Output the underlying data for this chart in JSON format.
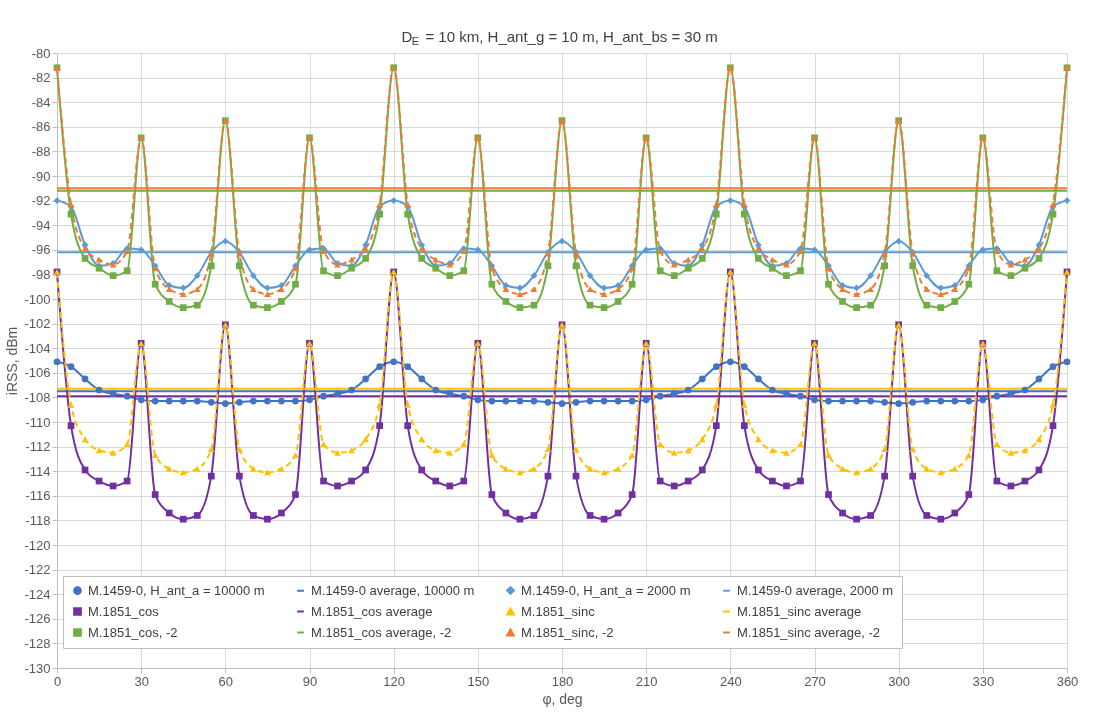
{
  "chart_data": {
    "type": "line",
    "title": "D$_{E}$ = 10 km, H_ant_g = 10 m, H_ant_bs = 30 m",
    "xlabel": "φ, deg",
    "ylabel": "iRSS, dBm",
    "x": [
      0,
      5,
      10,
      15,
      20,
      25,
      30,
      35,
      40,
      45,
      50,
      55,
      60,
      65,
      70,
      75,
      80,
      85,
      90,
      95,
      100,
      105,
      110,
      115,
      120,
      125,
      130,
      135,
      140,
      145,
      150,
      155,
      160,
      165,
      170,
      175,
      180,
      185,
      190,
      195,
      200,
      205,
      210,
      215,
      220,
      225,
      230,
      235,
      240,
      245,
      250,
      255,
      260,
      265,
      270,
      275,
      280,
      285,
      290,
      295,
      300,
      305,
      310,
      315,
      320,
      325,
      330,
      335,
      340,
      345,
      350,
      355,
      360
    ],
    "xlim": [
      0,
      360
    ],
    "xticks": [
      0,
      30,
      60,
      90,
      120,
      150,
      180,
      210,
      240,
      270,
      300,
      330,
      360
    ],
    "ylim": [
      -130,
      -80
    ],
    "yticks": [
      -130,
      -128,
      -126,
      -124,
      -122,
      -120,
      -118,
      -116,
      -114,
      -112,
      -110,
      -108,
      -106,
      -104,
      -102,
      -100,
      -98,
      -96,
      -94,
      -92,
      -90,
      -88,
      -86,
      -84,
      -82,
      -80
    ],
    "grid": true,
    "legend": "bottom",
    "series": [
      {
        "name": "M.1459-0, H_ant_a = 10000 m",
        "color": "#4472c4",
        "type": "line",
        "marker": "circle",
        "line_style": "solid",
        "values": [
          -105.1,
          -105.5,
          -106.5,
          -107.4,
          -107.7,
          -107.9,
          -108.2,
          -108.3,
          -108.3,
          -108.3,
          -108.3,
          -108.4,
          -108.5,
          -108.4,
          -108.3,
          -108.3,
          -108.3,
          -108.3,
          -108.2,
          -107.9,
          -107.7,
          -107.4,
          -106.5,
          -105.5,
          -105.1,
          -105.5,
          -106.5,
          -107.4,
          -107.7,
          -107.9,
          -108.2,
          -108.3,
          -108.3,
          -108.3,
          -108.3,
          -108.4,
          -108.5,
          -108.4,
          -108.3,
          -108.3,
          -108.3,
          -108.3,
          -108.2,
          -107.9,
          -107.7,
          -107.4,
          -106.5,
          -105.5,
          -105.1,
          -105.5,
          -106.5,
          -107.4,
          -107.7,
          -107.9,
          -108.2,
          -108.3,
          -108.3,
          -108.3,
          -108.3,
          -108.4,
          -108.5,
          -108.4,
          -108.3,
          -108.3,
          -108.3,
          -108.3,
          -108.2,
          -107.9,
          -107.7,
          -107.4,
          -106.5,
          -105.5,
          -105.1
        ]
      },
      {
        "name": "M.1459-0 average, 10000 m",
        "color": "#4472c4",
        "type": "line",
        "marker": "none",
        "line_style": "solid",
        "values": [
          -107.5,
          -107.5,
          -107.5,
          -107.5,
          -107.5,
          -107.5,
          -107.5,
          -107.5,
          -107.5,
          -107.5,
          -107.5,
          -107.5,
          -107.5,
          -107.5,
          -107.5,
          -107.5,
          -107.5,
          -107.5,
          -107.5,
          -107.5,
          -107.5,
          -107.5,
          -107.5,
          -107.5,
          -107.5,
          -107.5,
          -107.5,
          -107.5,
          -107.5,
          -107.5,
          -107.5,
          -107.5,
          -107.5,
          -107.5,
          -107.5,
          -107.5,
          -107.5,
          -107.5,
          -107.5,
          -107.5,
          -107.5,
          -107.5,
          -107.5,
          -107.5,
          -107.5,
          -107.5,
          -107.5,
          -107.5,
          -107.5,
          -107.5,
          -107.5,
          -107.5,
          -107.5,
          -107.5,
          -107.5,
          -107.5,
          -107.5,
          -107.5,
          -107.5,
          -107.5,
          -107.5,
          -107.5,
          -107.5,
          -107.5,
          -107.5,
          -107.5,
          -107.5,
          -107.5,
          -107.5,
          -107.5,
          -107.5,
          -107.5,
          -107.5
        ]
      },
      {
        "name": "M.1459-0, H_ant_a = 2000 m",
        "color": "#5b9bd5",
        "type": "line",
        "marker": "diamond",
        "line_style": "solid",
        "values": [
          -92.0,
          -92.5,
          -95.6,
          -97.3,
          -97.1,
          -95.9,
          -96.0,
          -97.3,
          -98.9,
          -99.1,
          -98.1,
          -96.2,
          -95.3,
          -96.2,
          -98.1,
          -99.1,
          -98.9,
          -97.3,
          -96.0,
          -95.9,
          -97.1,
          -97.3,
          -95.6,
          -92.5,
          -92.0,
          -92.5,
          -95.6,
          -97.3,
          -97.1,
          -95.9,
          -96.0,
          -97.3,
          -98.9,
          -99.1,
          -98.1,
          -96.2,
          -95.3,
          -96.2,
          -98.1,
          -99.1,
          -98.9,
          -97.3,
          -96.0,
          -95.9,
          -97.1,
          -97.3,
          -95.6,
          -92.5,
          -92.0,
          -92.5,
          -95.6,
          -97.3,
          -97.1,
          -95.9,
          -96.0,
          -97.3,
          -98.9,
          -99.1,
          -98.1,
          -96.2,
          -95.3,
          -96.2,
          -98.1,
          -99.1,
          -98.9,
          -97.3,
          -96.0,
          -95.9,
          -97.1,
          -97.3,
          -95.6,
          -92.5,
          -92.0
        ]
      },
      {
        "name": "M.1459-0 average, 2000 m",
        "color": "#5b9bd5",
        "type": "line",
        "marker": "none",
        "line_style": "solid",
        "values": [
          -96.2,
          -96.2,
          -96.2,
          -96.2,
          -96.2,
          -96.2,
          -96.2,
          -96.2,
          -96.2,
          -96.2,
          -96.2,
          -96.2,
          -96.2,
          -96.2,
          -96.2,
          -96.2,
          -96.2,
          -96.2,
          -96.2,
          -96.2,
          -96.2,
          -96.2,
          -96.2,
          -96.2,
          -96.2,
          -96.2,
          -96.2,
          -96.2,
          -96.2,
          -96.2,
          -96.2,
          -96.2,
          -96.2,
          -96.2,
          -96.2,
          -96.2,
          -96.2,
          -96.2,
          -96.2,
          -96.2,
          -96.2,
          -96.2,
          -96.2,
          -96.2,
          -96.2,
          -96.2,
          -96.2,
          -96.2,
          -96.2,
          -96.2,
          -96.2,
          -96.2,
          -96.2,
          -96.2,
          -96.2,
          -96.2,
          -96.2,
          -96.2,
          -96.2,
          -96.2,
          -96.2,
          -96.2,
          -96.2,
          -96.2,
          -96.2,
          -96.2,
          -96.2,
          -96.2,
          -96.2,
          -96.2,
          -96.2,
          -96.2,
          -96.2
        ]
      },
      {
        "name": "M.1851_cos",
        "color": "#7030a0",
        "type": "line",
        "marker": "square",
        "line_style": "solid",
        "values": [
          -97.8,
          -110.3,
          -113.9,
          -114.8,
          -115.2,
          -114.8,
          -103.6,
          -115.9,
          -117.4,
          -117.9,
          -117.6,
          -114.4,
          -102.1,
          -114.4,
          -117.6,
          -117.9,
          -117.4,
          -115.9,
          -103.6,
          -114.8,
          -115.2,
          -114.8,
          -113.9,
          -110.3,
          -97.8,
          -110.3,
          -113.9,
          -114.8,
          -115.2,
          -114.8,
          -103.6,
          -115.9,
          -117.4,
          -117.9,
          -117.6,
          -114.4,
          -102.1,
          -114.4,
          -117.6,
          -117.9,
          -117.4,
          -115.9,
          -103.6,
          -114.8,
          -115.2,
          -114.8,
          -113.9,
          -110.3,
          -97.8,
          -110.3,
          -113.9,
          -114.8,
          -115.2,
          -114.8,
          -103.6,
          -115.9,
          -117.4,
          -117.9,
          -117.6,
          -114.4,
          -102.1,
          -114.4,
          -117.6,
          -117.9,
          -117.4,
          -115.9,
          -103.6,
          -114.8,
          -115.2,
          -114.8,
          -113.9,
          -110.3,
          -97.8
        ]
      },
      {
        "name": "M.1851_cos average",
        "color": "#7030a0",
        "type": "line",
        "marker": "none",
        "line_style": "solid",
        "values": [
          -107.9,
          -107.9,
          -107.9,
          -107.9,
          -107.9,
          -107.9,
          -107.9,
          -107.9,
          -107.9,
          -107.9,
          -107.9,
          -107.9,
          -107.9,
          -107.9,
          -107.9,
          -107.9,
          -107.9,
          -107.9,
          -107.9,
          -107.9,
          -107.9,
          -107.9,
          -107.9,
          -107.9,
          -107.9,
          -107.9,
          -107.9,
          -107.9,
          -107.9,
          -107.9,
          -107.9,
          -107.9,
          -107.9,
          -107.9,
          -107.9,
          -107.9,
          -107.9,
          -107.9,
          -107.9,
          -107.9,
          -107.9,
          -107.9,
          -107.9,
          -107.9,
          -107.9,
          -107.9,
          -107.9,
          -107.9,
          -107.9,
          -107.9,
          -107.9,
          -107.9,
          -107.9,
          -107.9,
          -107.9,
          -107.9,
          -107.9,
          -107.9,
          -107.9,
          -107.9,
          -107.9,
          -107.9,
          -107.9,
          -107.9,
          -107.9,
          -107.9,
          -107.9,
          -107.9,
          -107.9,
          -107.9,
          -107.9,
          -107.9,
          -107.9
        ]
      },
      {
        "name": "M.1851_sinc",
        "color": "#ffc000",
        "type": "line",
        "marker": "triangle",
        "line_style": "dashed",
        "values": [
          -97.8,
          -108.6,
          -111.4,
          -112.3,
          -112.5,
          -111.8,
          -103.6,
          -112.7,
          -113.8,
          -114.1,
          -113.8,
          -112.2,
          -102.1,
          -112.2,
          -113.8,
          -114.1,
          -113.8,
          -112.7,
          -103.6,
          -111.8,
          -112.5,
          -112.3,
          -111.4,
          -108.6,
          -97.8,
          -108.6,
          -111.4,
          -112.3,
          -112.5,
          -111.8,
          -103.6,
          -112.7,
          -113.8,
          -114.1,
          -113.8,
          -112.2,
          -102.1,
          -112.2,
          -113.8,
          -114.1,
          -113.8,
          -112.7,
          -103.6,
          -111.8,
          -112.5,
          -112.3,
          -111.4,
          -108.6,
          -97.8,
          -108.6,
          -111.4,
          -112.3,
          -112.5,
          -111.8,
          -103.6,
          -112.7,
          -113.8,
          -114.1,
          -113.8,
          -112.2,
          -102.1,
          -112.2,
          -113.8,
          -114.1,
          -113.8,
          -112.7,
          -103.6,
          -111.8,
          -112.5,
          -112.3,
          -111.4,
          -108.6,
          -97.8
        ]
      },
      {
        "name": "M.1851_sinc average",
        "color": "#ffc000",
        "type": "line",
        "marker": "none",
        "line_style": "solid",
        "values": [
          -107.3,
          -107.3,
          -107.3,
          -107.3,
          -107.3,
          -107.3,
          -107.3,
          -107.3,
          -107.3,
          -107.3,
          -107.3,
          -107.3,
          -107.3,
          -107.3,
          -107.3,
          -107.3,
          -107.3,
          -107.3,
          -107.3,
          -107.3,
          -107.3,
          -107.3,
          -107.3,
          -107.3,
          -107.3,
          -107.3,
          -107.3,
          -107.3,
          -107.3,
          -107.3,
          -107.3,
          -107.3,
          -107.3,
          -107.3,
          -107.3,
          -107.3,
          -107.3,
          -107.3,
          -107.3,
          -107.3,
          -107.3,
          -107.3,
          -107.3,
          -107.3,
          -107.3,
          -107.3,
          -107.3,
          -107.3,
          -107.3,
          -107.3,
          -107.3,
          -107.3,
          -107.3,
          -107.3,
          -107.3,
          -107.3,
          -107.3,
          -107.3,
          -107.3,
          -107.3,
          -107.3,
          -107.3,
          -107.3,
          -107.3,
          -107.3,
          -107.3,
          -107.3,
          -107.3,
          -107.3,
          -107.3,
          -107.3,
          -107.3,
          -107.3
        ]
      },
      {
        "name": "M.1851_cos, -2",
        "color": "#70ad47",
        "type": "line",
        "marker": "square",
        "line_style": "solid",
        "values": [
          -81.2,
          -93.1,
          -96.7,
          -97.5,
          -98.1,
          -97.7,
          -86.9,
          -98.8,
          -100.2,
          -100.7,
          -100.5,
          -97.3,
          -85.5,
          -97.3,
          -100.5,
          -100.7,
          -100.2,
          -98.8,
          -86.9,
          -97.7,
          -98.1,
          -97.5,
          -96.7,
          -93.1,
          -81.2,
          -93.1,
          -96.7,
          -97.5,
          -98.1,
          -97.7,
          -86.9,
          -98.8,
          -100.2,
          -100.7,
          -100.5,
          -97.3,
          -85.5,
          -97.3,
          -100.5,
          -100.7,
          -100.2,
          -98.8,
          -86.9,
          -97.7,
          -98.1,
          -97.5,
          -96.7,
          -93.1,
          -81.2,
          -93.1,
          -96.7,
          -97.5,
          -98.1,
          -97.7,
          -86.9,
          -98.8,
          -100.2,
          -100.7,
          -100.5,
          -97.3,
          -85.5,
          -97.3,
          -100.5,
          -100.7,
          -100.2,
          -98.8,
          -86.9,
          -97.7,
          -98.1,
          -97.5,
          -96.7,
          -93.1,
          -81.2
        ]
      },
      {
        "name": "M.1851_cos average, -2",
        "color": "#70ad47",
        "type": "line",
        "marker": "none",
        "line_style": "solid",
        "values": [
          -91.2,
          -91.2,
          -91.2,
          -91.2,
          -91.2,
          -91.2,
          -91.2,
          -91.2,
          -91.2,
          -91.2,
          -91.2,
          -91.2,
          -91.2,
          -91.2,
          -91.2,
          -91.2,
          -91.2,
          -91.2,
          -91.2,
          -91.2,
          -91.2,
          -91.2,
          -91.2,
          -91.2,
          -91.2,
          -91.2,
          -91.2,
          -91.2,
          -91.2,
          -91.2,
          -91.2,
          -91.2,
          -91.2,
          -91.2,
          -91.2,
          -91.2,
          -91.2,
          -91.2,
          -91.2,
          -91.2,
          -91.2,
          -91.2,
          -91.2,
          -91.2,
          -91.2,
          -91.2,
          -91.2,
          -91.2,
          -91.2,
          -91.2,
          -91.2,
          -91.2,
          -91.2,
          -91.2,
          -91.2,
          -91.2,
          -91.2,
          -91.2,
          -91.2,
          -91.2,
          -91.2,
          -91.2,
          -91.2,
          -91.2,
          -91.2,
          -91.2,
          -91.2,
          -91.2,
          -91.2,
          -91.2,
          -91.2,
          -91.2,
          -91.2
        ]
      },
      {
        "name": "M.1851_sinc, -2",
        "color": "#ed7d31",
        "type": "line",
        "marker": "triangle",
        "line_style": "dashed",
        "values": [
          -81.2,
          -92.3,
          -95.9,
          -96.8,
          -97.2,
          -96.1,
          -86.9,
          -97.5,
          -99.2,
          -99.6,
          -99.2,
          -96.3,
          -85.5,
          -96.3,
          -99.2,
          -99.6,
          -99.2,
          -97.5,
          -86.9,
          -96.1,
          -97.2,
          -96.8,
          -95.9,
          -92.3,
          -81.2,
          -92.3,
          -95.9,
          -96.8,
          -97.2,
          -96.1,
          -86.9,
          -97.5,
          -99.2,
          -99.6,
          -99.2,
          -96.3,
          -85.5,
          -96.3,
          -99.2,
          -99.6,
          -99.2,
          -97.5,
          -86.9,
          -96.1,
          -97.2,
          -96.8,
          -95.9,
          -92.3,
          -81.2,
          -92.3,
          -95.9,
          -96.8,
          -97.2,
          -96.1,
          -86.9,
          -97.5,
          -99.2,
          -99.6,
          -99.2,
          -96.3,
          -85.5,
          -96.3,
          -99.2,
          -99.6,
          -99.2,
          -97.5,
          -86.9,
          -96.1,
          -97.2,
          -96.8,
          -95.9,
          -92.3,
          -81.2
        ]
      },
      {
        "name": "M.1851_sinc average, -2",
        "color": "#ed7d31",
        "type": "line",
        "marker": "none",
        "line_style": "solid",
        "values": [
          -91.0,
          -91.0,
          -91.0,
          -91.0,
          -91.0,
          -91.0,
          -91.0,
          -91.0,
          -91.0,
          -91.0,
          -91.0,
          -91.0,
          -91.0,
          -91.0,
          -91.0,
          -91.0,
          -91.0,
          -91.0,
          -91.0,
          -91.0,
          -91.0,
          -91.0,
          -91.0,
          -91.0,
          -91.0,
          -91.0,
          -91.0,
          -91.0,
          -91.0,
          -91.0,
          -91.0,
          -91.0,
          -91.0,
          -91.0,
          -91.0,
          -91.0,
          -91.0,
          -91.0,
          -91.0,
          -91.0,
          -91.0,
          -91.0,
          -91.0,
          -91.0,
          -91.0,
          -91.0,
          -91.0,
          -91.0,
          -91.0,
          -91.0,
          -91.0,
          -91.0,
          -91.0,
          -91.0,
          -91.0,
          -91.0,
          -91.0,
          -91.0,
          -91.0,
          -91.0,
          -91.0,
          -91.0,
          -91.0,
          -91.0,
          -91.0,
          -91.0,
          -91.0,
          -91.0,
          -91.0,
          -91.0,
          -91.0,
          -91.0,
          -91.0
        ]
      }
    ]
  }
}
